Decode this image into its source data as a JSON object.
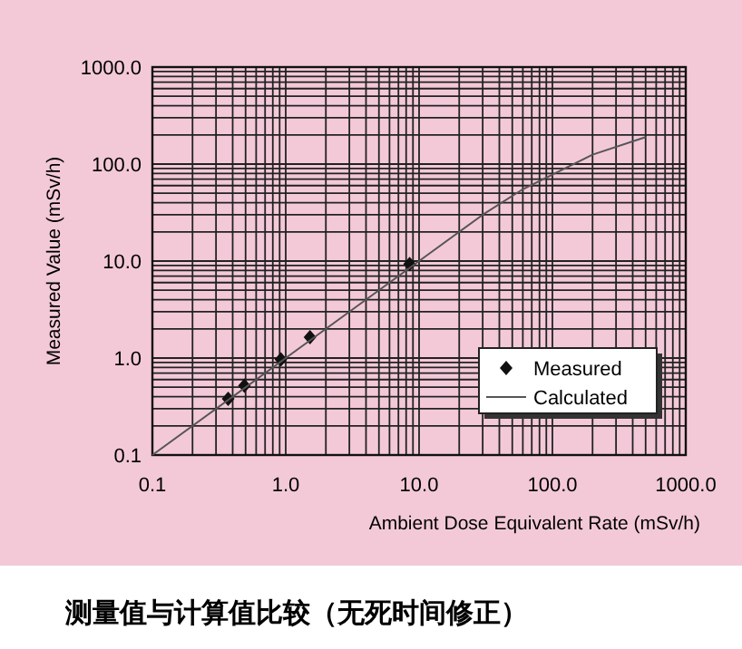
{
  "chart_data": {
    "type": "scatter",
    "title": "测量值与计算值比较（无死时间修正）",
    "xlabel": "Ambient Dose Equivalent Rate (mSv/h)",
    "ylabel": "Measured Value (mSv/h)",
    "log": "xy",
    "grid": true,
    "legend": "bottom right",
    "xlim": [
      0.1,
      1000
    ],
    "ylim": [
      0.1,
      1000
    ],
    "xticks": [
      0.1,
      {
        "value": 1,
        "label": "1.0"
      },
      {
        "value": 10,
        "label": "10.0"
      },
      {
        "value": 100,
        "label": "100.0"
      },
      {
        "value": 1000,
        "label": "1000.0"
      }
    ],
    "yticks": [
      0.1,
      {
        "value": 1,
        "label": "1.0"
      },
      {
        "value": 10,
        "label": "10.0"
      },
      {
        "value": 100,
        "label": "100.0"
      },
      {
        "value": 1000,
        "label": "1000.0"
      }
    ],
    "series": [
      {
        "name": "Measured",
        "marker": "diamond",
        "color": "#111111",
        "x": [
          0.37,
          0.49,
          0.92,
          1.52,
          8.5
        ],
        "values": [
          0.38,
          0.52,
          0.97,
          1.64,
          9.3
        ]
      },
      {
        "name": "Calculated",
        "type": "line",
        "marker": "none",
        "color": "#555555",
        "x": [
          0.1,
          1,
          10,
          30,
          60,
          100,
          200,
          500
        ],
        "values": [
          0.1,
          1,
          10,
          30,
          55,
          78,
          125,
          190
        ]
      }
    ]
  }
}
